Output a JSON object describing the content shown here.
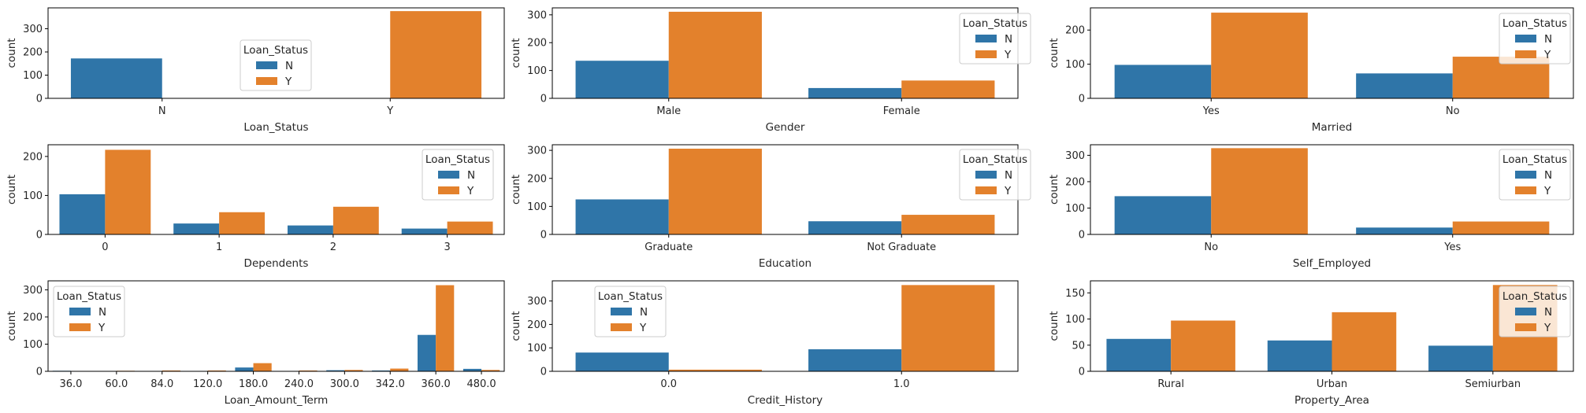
{
  "colors": {
    "N": "#2f75a8",
    "Y": "#e3812c",
    "axis": "#000000",
    "text": "#262626",
    "legend_edge": "#cccccc"
  },
  "legend": {
    "title": "Loan_Status",
    "labels": [
      "N",
      "Y"
    ]
  },
  "chart_data": [
    {
      "type": "bar",
      "xlabel": "Loan_Status",
      "ylabel": "count",
      "categories": [
        "N",
        "Y"
      ],
      "series": [
        {
          "name": "N",
          "values": [
            172,
            null
          ]
        },
        {
          "name": "Y",
          "values": [
            null,
            376
          ]
        }
      ],
      "ylim": [
        0,
        390
      ],
      "yticks": [
        0,
        100,
        200,
        300
      ],
      "legend_loc": "center"
    },
    {
      "type": "bar",
      "xlabel": "Gender",
      "ylabel": "count",
      "categories": [
        "Male",
        "Female"
      ],
      "series": [
        {
          "name": "N",
          "values": [
            135,
            37
          ]
        },
        {
          "name": "Y",
          "values": [
            311,
            64
          ]
        }
      ],
      "ylim": [
        0,
        325
      ],
      "yticks": [
        0,
        100,
        200,
        300
      ],
      "legend_loc": "upper right"
    },
    {
      "type": "bar",
      "xlabel": "Married",
      "ylabel": "count",
      "categories": [
        "Yes",
        "No"
      ],
      "series": [
        {
          "name": "N",
          "values": [
            98,
            73
          ]
        },
        {
          "name": "Y",
          "values": [
            251,
            122
          ]
        }
      ],
      "ylim": [
        0,
        265
      ],
      "yticks": [
        0,
        100,
        200
      ],
      "legend_loc": "upper right"
    },
    {
      "type": "bar",
      "xlabel": "Dependents",
      "ylabel": "count",
      "categories": [
        "0",
        "1",
        "2",
        "3"
      ],
      "series": [
        {
          "name": "N",
          "values": [
            103,
            28,
            23,
            15
          ]
        },
        {
          "name": "Y",
          "values": [
            217,
            57,
            71,
            33
          ]
        }
      ],
      "ylim": [
        0,
        230
      ],
      "yticks": [
        0,
        100,
        200
      ],
      "legend_loc": "upper right"
    },
    {
      "type": "bar",
      "xlabel": "Education",
      "ylabel": "count",
      "categories": [
        "Graduate",
        "Not Graduate"
      ],
      "series": [
        {
          "name": "N",
          "values": [
            125,
            47
          ]
        },
        {
          "name": "Y",
          "values": [
            306,
            70
          ]
        }
      ],
      "ylim": [
        0,
        320
      ],
      "yticks": [
        0,
        100,
        200,
        300
      ],
      "legend_loc": "upper right"
    },
    {
      "type": "bar",
      "xlabel": "Self_Employed",
      "ylabel": "count",
      "categories": [
        "No",
        "Yes"
      ],
      "series": [
        {
          "name": "N",
          "values": [
            145,
            26
          ]
        },
        {
          "name": "Y",
          "values": [
            327,
            49
          ]
        }
      ],
      "ylim": [
        0,
        340
      ],
      "yticks": [
        0,
        100,
        200,
        300
      ],
      "legend_loc": "upper right"
    },
    {
      "type": "bar",
      "xlabel": "Loan_Amount_Term",
      "ylabel": "count",
      "categories": [
        "36.0",
        "60.0",
        "84.0",
        "120.0",
        "180.0",
        "240.0",
        "300.0",
        "342.0",
        "360.0",
        "480.0"
      ],
      "series": [
        {
          "name": "N",
          "values": [
            2,
            0,
            1,
            0,
            14,
            1,
            4,
            3,
            134,
            9
          ]
        },
        {
          "name": "Y",
          "values": [
            0,
            2,
            3,
            3,
            30,
            3,
            5,
            10,
            317,
            5
          ]
        }
      ],
      "ylim": [
        0,
        333
      ],
      "yticks": [
        0,
        100,
        200,
        300
      ],
      "legend_loc": "upper left"
    },
    {
      "type": "bar",
      "xlabel": "Credit_History",
      "ylabel": "count",
      "categories": [
        "0.0",
        "1.0"
      ],
      "series": [
        {
          "name": "N",
          "values": [
            80,
            94
          ]
        },
        {
          "name": "Y",
          "values": [
            7,
            368
          ]
        }
      ],
      "ylim": [
        0,
        386
      ],
      "yticks": [
        0,
        100,
        200,
        300
      ],
      "legend_loc": "upper left"
    },
    {
      "type": "bar",
      "xlabel": "Property_Area",
      "ylabel": "count",
      "categories": [
        "Rural",
        "Urban",
        "Semiurban"
      ],
      "series": [
        {
          "name": "N",
          "values": [
            62,
            59,
            49
          ]
        },
        {
          "name": "Y",
          "values": [
            97,
            113,
            165
          ]
        }
      ],
      "ylim": [
        0,
        173
      ],
      "yticks": [
        0,
        50,
        100,
        150
      ],
      "legend_loc": "upper right"
    }
  ]
}
